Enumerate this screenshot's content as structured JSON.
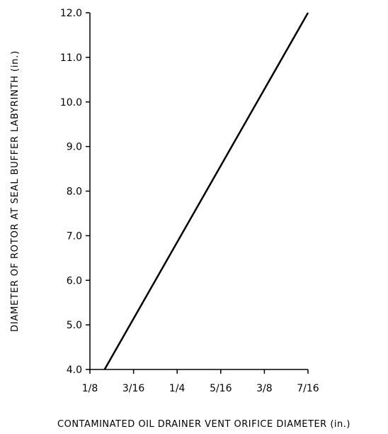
{
  "chart_data": {
    "type": "line",
    "title": "",
    "xlabel": "CONTAMINATED OIL DRAINER VENT ORIFICE DIAMETER (in.)",
    "ylabel": "DIAMETER OF ROTOR AT SEAL BUFFER LABYRINTH (in.)",
    "xlim": [
      0.125,
      0.4375
    ],
    "ylim": [
      4.0,
      12.0
    ],
    "x_ticks": [
      0.125,
      0.1875,
      0.25,
      0.3125,
      0.375,
      0.4375
    ],
    "x_tick_labels": [
      "1/8",
      "3/16",
      "1/4",
      "5/16",
      "3/8",
      "7/16"
    ],
    "y_ticks": [
      4.0,
      5.0,
      6.0,
      7.0,
      8.0,
      9.0,
      10.0,
      11.0,
      12.0
    ],
    "y_tick_labels": [
      "4.0",
      "5.0",
      "6.0",
      "7.0",
      "8.0",
      "9.0",
      "10.0",
      "11.0",
      "12.0"
    ],
    "grid": false,
    "legend": "none",
    "series": [
      {
        "x": [
          0.146,
          0.4375
        ],
        "y": [
          4.0,
          12.0
        ]
      }
    ],
    "colors": {
      "line": "#000000",
      "axis": "#000000"
    }
  }
}
